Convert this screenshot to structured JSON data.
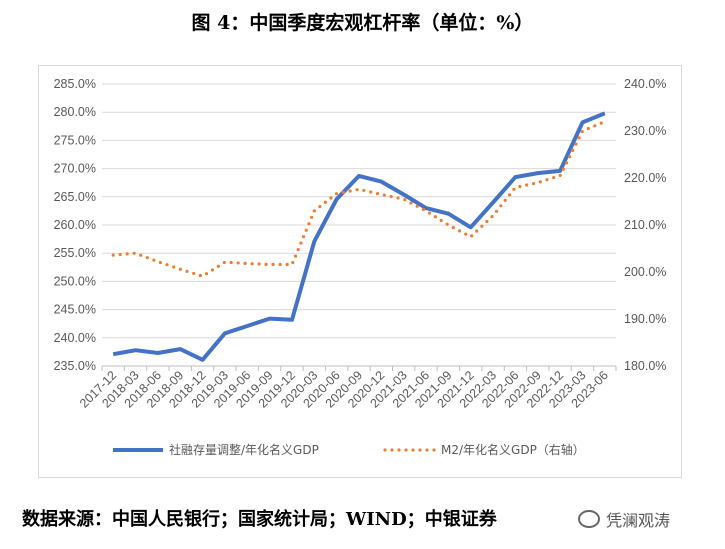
{
  "title": "图 4：中国季度宏观杠杆率（单位：%）",
  "source": "数据来源：中国人民银行；国家统计局；WIND；中银证券",
  "watermark": "凭澜观涛",
  "chart_data": {
    "type": "line",
    "categories": [
      "2017-12",
      "2018-03",
      "2018-06",
      "2018-09",
      "2018-12",
      "2019-03",
      "2019-06",
      "2019-09",
      "2019-12",
      "2020-03",
      "2020-06",
      "2020-09",
      "2020-12",
      "2021-03",
      "2021-06",
      "2021-09",
      "2021-12",
      "2022-03",
      "2022-06",
      "2022-09",
      "2022-12",
      "2023-03",
      "2023-06"
    ],
    "series": [
      {
        "name": "社融存量调整/年化名义GDP",
        "axis": "left",
        "color": "#4472C4",
        "style": "solid",
        "values": [
          237.1,
          237.8,
          237.3,
          238.0,
          236.1,
          240.8,
          242.1,
          243.4,
          243.2,
          257.1,
          264.6,
          268.7,
          267.7,
          265.4,
          263.0,
          262.0,
          259.6,
          264.0,
          268.5,
          269.2,
          269.6,
          278.2,
          279.8
        ]
      },
      {
        "name": "M2/年化名义GDP（右轴）",
        "axis": "right",
        "color": "#ED7D31",
        "style": "dotted",
        "values": [
          203.6,
          204.0,
          202.2,
          200.6,
          199.1,
          202.1,
          201.8,
          201.6,
          201.6,
          213.0,
          216.7,
          217.6,
          216.5,
          215.5,
          213.0,
          210.0,
          207.5,
          212.0,
          218.0,
          219.0,
          220.5,
          230.0,
          232.0
        ]
      }
    ],
    "ylim": [
      235,
      285
    ],
    "yticks": [
      "235.0%",
      "240.0%",
      "245.0%",
      "250.0%",
      "255.0%",
      "260.0%",
      "265.0%",
      "270.0%",
      "275.0%",
      "280.0%",
      "285.0%"
    ],
    "y2lim": [
      180,
      240
    ],
    "y2ticks": [
      "180.0%",
      "190.0%",
      "200.0%",
      "210.0%",
      "220.0%",
      "230.0%",
      "240.0%"
    ],
    "grid": true,
    "legend": "bottom"
  }
}
